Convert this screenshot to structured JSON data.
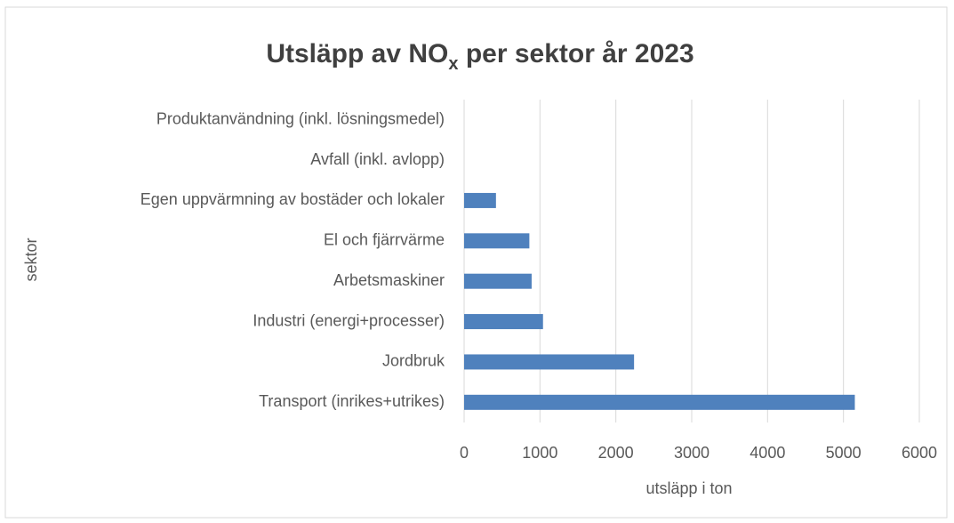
{
  "chart_data": {
    "type": "bar",
    "orientation": "horizontal",
    "title": [
      "Utsläpp av NO",
      "x",
      " per sektor år 2023"
    ],
    "xlabel": "utsläpp i ton",
    "ylabel": "sektor",
    "categories": [
      "Transport (inrikes+utrikes)",
      "Jordbruk",
      "Industri (energi+processer)",
      "Arbetsmaskiner",
      "El och fjärrvärme",
      "Egen uppvärmning av bostäder och lokaler",
      "Avfall (inkl. avlopp)",
      "Produktanvändning (inkl. lösningsmedel)"
    ],
    "values": [
      5150,
      2240,
      1040,
      890,
      860,
      420,
      0,
      0
    ],
    "color": "#4f81bd",
    "xlim": [
      0,
      6000
    ],
    "xticks": [
      0,
      1000,
      2000,
      3000,
      4000,
      5000,
      6000
    ],
    "grid": true
  }
}
